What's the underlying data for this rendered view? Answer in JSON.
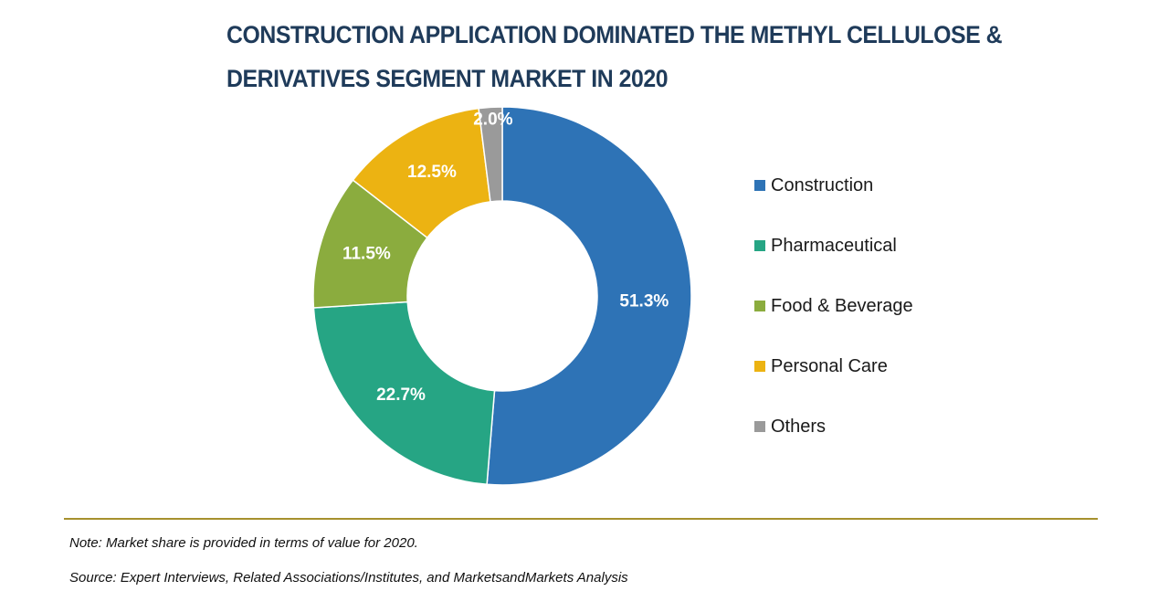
{
  "title_line1": "CONSTRUCTION APPLICATION DOMINATED THE METHYL CELLULOSE &",
  "title_line2": "DERIVATIVES SEGMENT MARKET IN 2020",
  "chart_data": {
    "type": "pie",
    "variant": "donut",
    "title": "CONSTRUCTION APPLICATION DOMINATED THE METHYL CELLULOSE & DERIVATIVES SEGMENT MARKET IN 2020",
    "categories": [
      "Construction",
      "Pharmaceutical",
      "Food & Beverage",
      "Personal Care",
      "Others"
    ],
    "values": [
      51.3,
      22.7,
      11.5,
      12.5,
      2.0
    ],
    "labels": [
      "51.3%",
      "22.7%",
      "11.5%",
      "12.5%",
      "2.0%"
    ],
    "colors": [
      "#2e73b6",
      "#26a584",
      "#8bac3e",
      "#ecb312",
      "#9a9a9a"
    ],
    "unit": "%",
    "legend_position": "right"
  },
  "legend": {
    "items": [
      {
        "label": "Construction",
        "color": "#2e73b6"
      },
      {
        "label": "Pharmaceutical",
        "color": "#26a584"
      },
      {
        "label": "Food & Beverage",
        "color": "#8bac3e"
      },
      {
        "label": "Personal Care",
        "color": "#ecb312"
      },
      {
        "label": "Others",
        "color": "#9a9a9a"
      }
    ]
  },
  "footer": {
    "note": "Note: Market share is provided in terms of value for 2020.",
    "source": "Source: Expert Interviews, Related Associations/Institutes, and MarketsandMarkets Analysis"
  }
}
